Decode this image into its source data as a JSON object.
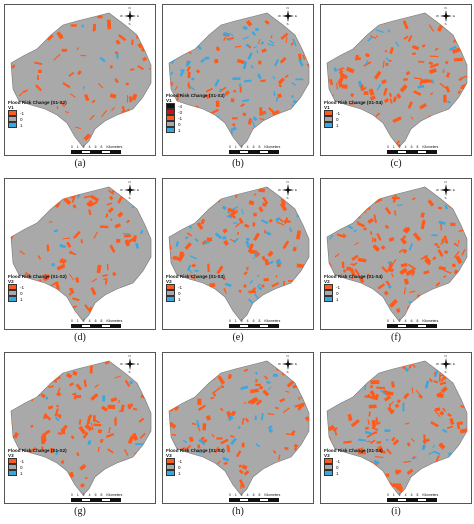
{
  "colors": {
    "decrease": "#ff5a1a",
    "nochange": "#a9a9a9",
    "increase": "#3aa7e0",
    "extra_dark": "#111111",
    "extra_red": "#c81414"
  },
  "north_labels": {
    "n": "N",
    "s": "S",
    "e": "E",
    "w": "W"
  },
  "scalebar": {
    "ticks": [
      "0",
      "1",
      "2",
      "4",
      "6",
      "8"
    ],
    "unit": "Kilometers"
  },
  "panels": [
    {
      "id": "a",
      "caption": "(a)",
      "title": "Flood Risk Change (S1-S2)",
      "variant": "V1",
      "legend": [
        {
          "label": "-1",
          "color": "decrease"
        },
        {
          "label": "0",
          "color": "nochange"
        },
        {
          "label": "1",
          "color": "increase"
        }
      ],
      "orange_level": 0.35,
      "blue_level": 0.02
    },
    {
      "id": "b",
      "caption": "(b)",
      "title": "Flood Risk Change (S1-S3)",
      "variant": "V1",
      "legend": [
        {
          "label": "-4",
          "color": "extra_dark"
        },
        {
          "label": "-3",
          "color": "extra_red"
        },
        {
          "label": "-1",
          "color": "decrease"
        },
        {
          "label": "0",
          "color": "nochange"
        },
        {
          "label": "1",
          "color": "increase"
        }
      ],
      "orange_level": 0.3,
      "blue_level": 0.25
    },
    {
      "id": "c",
      "caption": "(c)",
      "title": "Flood Risk Change (S1-S4)",
      "variant": "V1",
      "legend": [
        {
          "label": "-1",
          "color": "decrease"
        },
        {
          "label": "0",
          "color": "nochange"
        },
        {
          "label": "1",
          "color": "increase"
        }
      ],
      "orange_level": 0.55,
      "blue_level": 0.08
    },
    {
      "id": "d",
      "caption": "(d)",
      "title": "Flood Risk Change (S1-S2)",
      "variant": "V2",
      "legend": [
        {
          "label": "-1",
          "color": "decrease"
        },
        {
          "label": "0",
          "color": "nochange"
        },
        {
          "label": "1",
          "color": "increase"
        }
      ],
      "orange_level": 0.45,
      "blue_level": 0.03
    },
    {
      "id": "e",
      "caption": "(e)",
      "title": "Flood Risk Change (S1-S3)",
      "variant": "V2",
      "legend": [
        {
          "label": "-1",
          "color": "decrease"
        },
        {
          "label": "0",
          "color": "nochange"
        },
        {
          "label": "1",
          "color": "increase"
        }
      ],
      "orange_level": 0.45,
      "blue_level": 0.18
    },
    {
      "id": "f",
      "caption": "(f)",
      "title": "Flood Risk Change (S1-S4)",
      "variant": "V2",
      "legend": [
        {
          "label": "-1",
          "color": "decrease"
        },
        {
          "label": "0",
          "color": "nochange"
        },
        {
          "label": "1",
          "color": "increase"
        }
      ],
      "orange_level": 0.62,
      "blue_level": 0.05
    },
    {
      "id": "g",
      "caption": "(g)",
      "title": "Flood Risk Change (S1-S2)",
      "variant": "V3",
      "legend": [
        {
          "label": "-1",
          "color": "decrease"
        },
        {
          "label": "0",
          "color": "nochange"
        },
        {
          "label": "1",
          "color": "increase"
        }
      ],
      "orange_level": 0.5,
      "blue_level": 0.03
    },
    {
      "id": "h",
      "caption": "(h)",
      "title": "Flood Risk Change (S1-S3)",
      "variant": "V3",
      "legend": [
        {
          "label": "-1",
          "color": "decrease"
        },
        {
          "label": "0",
          "color": "nochange"
        },
        {
          "label": "1",
          "color": "increase"
        }
      ],
      "orange_level": 0.5,
      "blue_level": 0.1
    },
    {
      "id": "i",
      "caption": "(i)",
      "title": "Flood Risk Change (S1-S4)",
      "variant": "V3",
      "legend": [
        {
          "label": "-1",
          "color": "decrease"
        },
        {
          "label": "0",
          "color": "nochange"
        },
        {
          "label": "1",
          "color": "increase"
        }
      ],
      "orange_level": 0.65,
      "blue_level": 0.08
    }
  ]
}
